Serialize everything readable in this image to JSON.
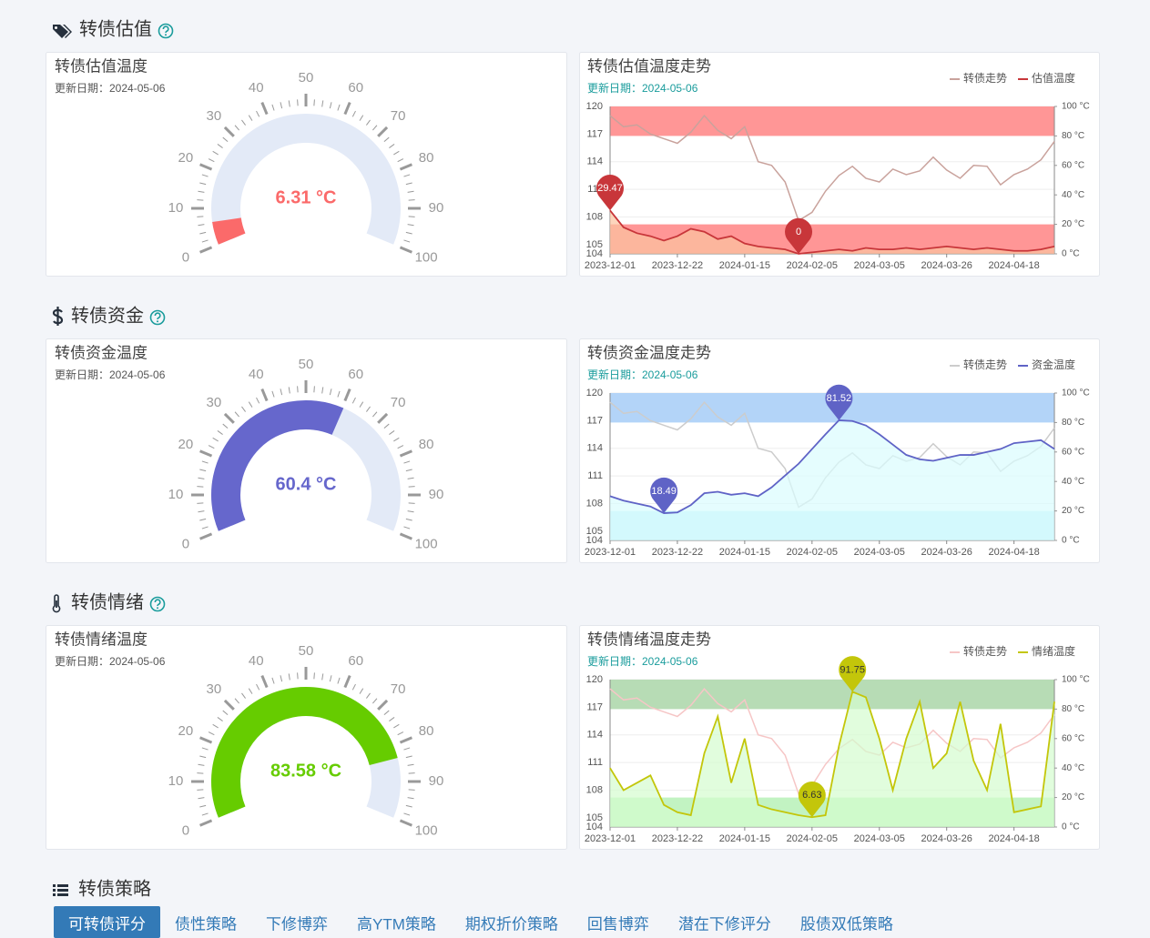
{
  "sections": [
    {
      "title": "转债估值",
      "gauge": {
        "type": "gauge",
        "title": "转债估值温度",
        "update": "更新日期：2024-05-06",
        "value": 6.31,
        "value_label": "6.31 °C",
        "color": "#fb6a6a",
        "track_color": "#e3eaf7",
        "range": [
          0,
          100
        ],
        "ticks": [
          0,
          10,
          20,
          30,
          40,
          50,
          60,
          70,
          80,
          90,
          100
        ]
      },
      "trend": {
        "type": "line",
        "title": "转债估值温度走势",
        "update": "更新日期：2024-05-06",
        "legend": "top-right",
        "categories": [
          "2023-12-01",
          null,
          null,
          null,
          null,
          "2023-12-22",
          null,
          null,
          null,
          null,
          "2024-01-15",
          null,
          null,
          null,
          null,
          "2024-02-05",
          null,
          null,
          null,
          null,
          "2024-03-05",
          null,
          null,
          null,
          null,
          "2024-03-26",
          null,
          null,
          null,
          null,
          "2024-04-18",
          null,
          null,
          null
        ],
        "series": [
          {
            "name": "转债走势",
            "color": "#c9a29c",
            "values": [
              119,
              117.8,
              118,
              117,
              116.5,
              116,
              117.2,
              119,
              117.4,
              116.5,
              117.8,
              114,
              113.6,
              111.8,
              107.6,
              108.5,
              110.8,
              112.5,
              113.5,
              112.2,
              111.8,
              113.2,
              112.6,
              113,
              114.5,
              113.1,
              112.2,
              113.6,
              113.5,
              111.5,
              112.6,
              113.2,
              114.2,
              116.2
            ]
          },
          {
            "name": "估值温度",
            "color": "#c8363a",
            "axis": "y2",
            "area_color": "#fbc3a0",
            "pin_text_color": "#ffffff",
            "values": [
              29.47,
              18,
              14,
              12,
              9,
              12,
              17,
              15,
              10,
              12,
              7,
              5,
              4,
              3,
              0,
              1,
              2,
              3,
              2,
              4,
              3,
              3,
              4,
              3,
              4,
              5,
              4,
              3,
              4,
              3,
              2,
              2,
              3,
              5
            ]
          }
        ],
        "ylim": [
          104,
          120
        ],
        "yticks": [
          104,
          105,
          108,
          111,
          114,
          117,
          120
        ],
        "y2lim": [
          0,
          100
        ],
        "y2ticks": [
          {
            "value": 0,
            "label": "0 °C"
          },
          {
            "value": 20,
            "label": "20 °C"
          },
          {
            "value": 40,
            "label": "40 °C"
          },
          {
            "value": 60,
            "label": "60 °C"
          },
          {
            "value": 80,
            "label": "80 °C"
          },
          {
            "value": 100,
            "label": "100 °C"
          }
        ],
        "bands": [
          {
            "from": 80,
            "to": 100,
            "color": "#ff9696"
          },
          {
            "from": 0,
            "to": 20,
            "color": "#ff9696"
          }
        ],
        "grid": true
      }
    },
    {
      "title": "转债资金",
      "gauge": {
        "type": "gauge",
        "title": "转债资金温度",
        "update": "更新日期：2024-05-06",
        "value": 60.4,
        "value_label": "60.4 °C",
        "color": "#6667cc",
        "track_color": "#e3eaf7",
        "range": [
          0,
          100
        ],
        "ticks": [
          0,
          10,
          20,
          30,
          40,
          50,
          60,
          70,
          80,
          90,
          100
        ]
      },
      "trend": {
        "type": "line",
        "title": "转债资金温度走势",
        "update": "更新日期：2024-05-06",
        "legend": "top-right",
        "categories": [
          "2023-12-01",
          null,
          null,
          null,
          null,
          "2023-12-22",
          null,
          null,
          null,
          null,
          "2024-01-15",
          null,
          null,
          null,
          null,
          "2024-02-05",
          null,
          null,
          null,
          null,
          "2024-03-05",
          null,
          null,
          null,
          null,
          "2024-03-26",
          null,
          null,
          null,
          null,
          "2024-04-18",
          null,
          null,
          null
        ],
        "series": [
          {
            "name": "转债走势",
            "color": "#cccccc",
            "values": [
              119,
              117.8,
              118,
              117,
              116.5,
              116,
              117.2,
              119,
              117.4,
              116.5,
              117.8,
              114,
              113.6,
              111.8,
              107.6,
              108.5,
              110.8,
              112.5,
              113.5,
              112.2,
              111.8,
              113.2,
              112.6,
              113,
              114.5,
              113.1,
              112.2,
              113.6,
              113.5,
              111.5,
              112.6,
              113.2,
              114.2,
              116.2
            ]
          },
          {
            "name": "资金温度",
            "color": "#5f63c6",
            "axis": "y2",
            "area_color": "#dafcfd",
            "pin_text_color": "#ffffff",
            "values": [
              30,
              27,
              25,
              23,
              18.49,
              19,
              24,
              32,
              33,
              31,
              32,
              30,
              36,
              44,
              52,
              62,
              72,
              81.52,
              81,
              78,
              72,
              65,
              58,
              55,
              54,
              56,
              58,
              58,
              60,
              62,
              66,
              67,
              68,
              62
            ]
          }
        ],
        "ylim": [
          104,
          120
        ],
        "yticks": [
          104,
          105,
          108,
          111,
          114,
          117,
          120
        ],
        "y2lim": [
          0,
          100
        ],
        "y2ticks": [
          {
            "value": 0,
            "label": "0 °C"
          },
          {
            "value": 20,
            "label": "20 °C"
          },
          {
            "value": 40,
            "label": "40 °C"
          },
          {
            "value": 60,
            "label": "60 °C"
          },
          {
            "value": 80,
            "label": "80 °C"
          },
          {
            "value": 100,
            "label": "100 °C"
          }
        ],
        "bands": [
          {
            "from": 80,
            "to": 100,
            "color": "#b3d4f8"
          },
          {
            "from": 0,
            "to": 20,
            "color": "#c4f0fb"
          }
        ],
        "grid": true
      }
    },
    {
      "title": "转债情绪",
      "gauge": {
        "type": "gauge",
        "title": "转债情绪温度",
        "update": "更新日期：2024-05-06",
        "value": 83.58,
        "value_label": "83.58 °C",
        "color": "#66cc00",
        "track_color": "#e3eaf7",
        "range": [
          0,
          100
        ],
        "ticks": [
          0,
          10,
          20,
          30,
          40,
          50,
          60,
          70,
          80,
          90,
          100
        ]
      },
      "trend": {
        "type": "line",
        "title": "转债情绪温度走势",
        "update": "更新日期：2024-05-06",
        "legend": "top-right",
        "categories": [
          "2023-12-01",
          null,
          null,
          null,
          null,
          "2023-12-22",
          null,
          null,
          null,
          null,
          "2024-01-15",
          null,
          null,
          null,
          null,
          "2024-02-05",
          null,
          null,
          null,
          null,
          "2024-03-05",
          null,
          null,
          null,
          null,
          "2024-03-26",
          null,
          null,
          null,
          null,
          "2024-04-18",
          null,
          null,
          null
        ],
        "series": [
          {
            "name": "转债走势",
            "color": "#f6c6c6",
            "values": [
              119,
              117.8,
              118,
              117,
              116.5,
              116,
              117.2,
              119,
              117.4,
              116.5,
              117.8,
              114,
              113.6,
              111.8,
              107.6,
              108.5,
              110.8,
              112.5,
              113.5,
              112.2,
              111.8,
              113.2,
              112.6,
              113,
              114.5,
              113.1,
              112.2,
              113.6,
              113.5,
              111.5,
              112.6,
              113.2,
              114.2,
              116.2
            ]
          },
          {
            "name": "情绪温度",
            "color": "#c3c60a",
            "axis": "y2",
            "area_color": "#d4fccf",
            "pin_text_color": "#333333",
            "values": [
              40,
              25,
              30,
              35,
              15,
              10,
              8,
              50,
              75,
              30,
              60,
              15,
              12,
              10,
              8,
              6.63,
              8,
              55,
              91.75,
              88,
              60,
              25,
              60,
              85,
              40,
              50,
              85,
              45,
              25,
              70,
              10,
              12,
              14,
              85
            ]
          }
        ],
        "ylim": [
          104,
          120
        ],
        "yticks": [
          104,
          105,
          108,
          111,
          114,
          117,
          120
        ],
        "y2lim": [
          0,
          100
        ],
        "y2ticks": [
          {
            "value": 0,
            "label": "0 °C"
          },
          {
            "value": 20,
            "label": "20 °C"
          },
          {
            "value": 40,
            "label": "40 °C"
          },
          {
            "value": 60,
            "label": "60 °C"
          },
          {
            "value": 80,
            "label": "80 °C"
          },
          {
            "value": 100,
            "label": "100 °C"
          }
        ],
        "bands": [
          {
            "from": 80,
            "to": 100,
            "color": "#b7dcb5"
          },
          {
            "from": 0,
            "to": 20,
            "color": "#c2f3c2"
          }
        ],
        "grid": true
      }
    }
  ],
  "strategy": {
    "title": "转债策略",
    "active": 0,
    "tabs": [
      "可转债评分",
      "债性策略",
      "下修博弈",
      "高YTM策略",
      "期权折价策略",
      "回售博弈",
      "潜在下修评分",
      "股债双低策略"
    ]
  }
}
